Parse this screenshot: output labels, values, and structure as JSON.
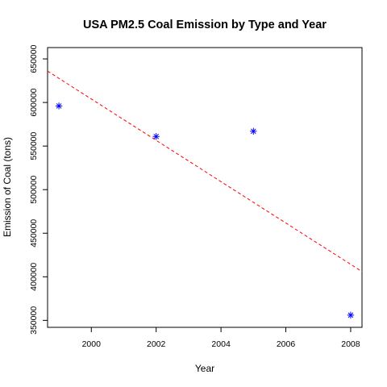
{
  "chart_data": {
    "type": "scatter",
    "title": "USA PM2.5 Coal Emission by Type and Year",
    "xlabel": "Year",
    "ylabel": "Emission of Coal (tons)",
    "xlim": [
      1998.65,
      2008.35
    ],
    "ylim": [
      342000,
      663000
    ],
    "xticks": [
      2000,
      2002,
      2004,
      2006,
      2008
    ],
    "yticks": [
      350000,
      400000,
      450000,
      500000,
      550000,
      600000,
      650000
    ],
    "series": [
      {
        "marker": "asterisk",
        "color": "#0000ff",
        "points": [
          {
            "x": 1999,
            "y": 596000
          },
          {
            "x": 2002,
            "y": 561000
          },
          {
            "x": 2005,
            "y": 567000
          },
          {
            "x": 2008,
            "y": 356000
          }
        ]
      }
    ],
    "trendline": {
      "style": "dashed",
      "color": "#ff0000",
      "start": {
        "x": 1998.65,
        "y": 636000
      },
      "end": {
        "x": 2008.35,
        "y": 406000
      }
    },
    "grid": false,
    "legend": "none"
  }
}
